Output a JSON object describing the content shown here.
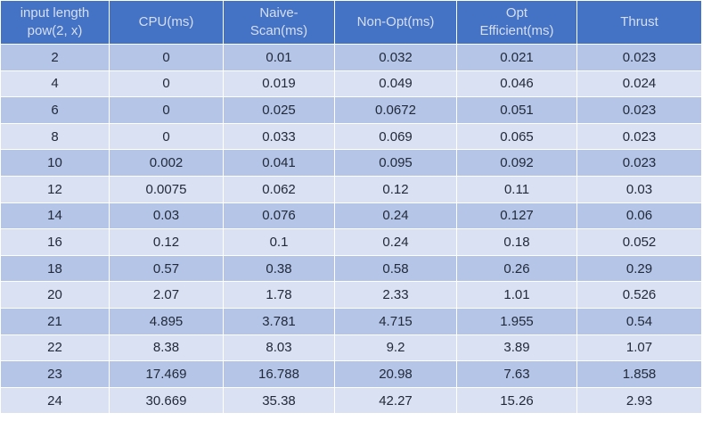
{
  "chart_data": {
    "type": "table",
    "columns": [
      [
        "input length",
        "pow(2, x)"
      ],
      [
        "CPU(ms)"
      ],
      [
        "Naive-",
        "Scan(ms)"
      ],
      [
        "Non-Opt(ms)"
      ],
      [
        "Opt",
        "Efficient(ms)"
      ],
      [
        "Thrust"
      ]
    ],
    "rows": [
      [
        "2",
        "0",
        "0.01",
        "0.032",
        "0.021",
        "0.023"
      ],
      [
        "4",
        "0",
        "0.019",
        "0.049",
        "0.046",
        "0.024"
      ],
      [
        "6",
        "0",
        "0.025",
        "0.0672",
        "0.051",
        "0.023"
      ],
      [
        "8",
        "0",
        "0.033",
        "0.069",
        "0.065",
        "0.023"
      ],
      [
        "10",
        "0.002",
        "0.041",
        "0.095",
        "0.092",
        "0.023"
      ],
      [
        "12",
        "0.0075",
        "0.062",
        "0.12",
        "0.11",
        "0.03"
      ],
      [
        "14",
        "0.03",
        "0.076",
        "0.24",
        "0.127",
        "0.06"
      ],
      [
        "16",
        "0.12",
        "0.1",
        "0.24",
        "0.18",
        "0.052"
      ],
      [
        "18",
        "0.57",
        "0.38",
        "0.58",
        "0.26",
        "0.29"
      ],
      [
        "20",
        "2.07",
        "1.78",
        "2.33",
        "1.01",
        "0.526"
      ],
      [
        "21",
        "4.895",
        "3.781",
        "4.715",
        "1.955",
        "0.54"
      ],
      [
        "22",
        "8.38",
        "8.03",
        "9.2",
        "3.89",
        "1.07"
      ],
      [
        "23",
        "17.469",
        "16.788",
        "20.98",
        "7.63",
        "1.858"
      ],
      [
        "24",
        "30.669",
        "35.38",
        "42.27",
        "15.26",
        "2.93"
      ]
    ],
    "colors": {
      "header_bg": "#4472c4",
      "header_text": "#d7dff2",
      "row_odd": "#b4c5e7",
      "row_even": "#dae1f3"
    }
  }
}
